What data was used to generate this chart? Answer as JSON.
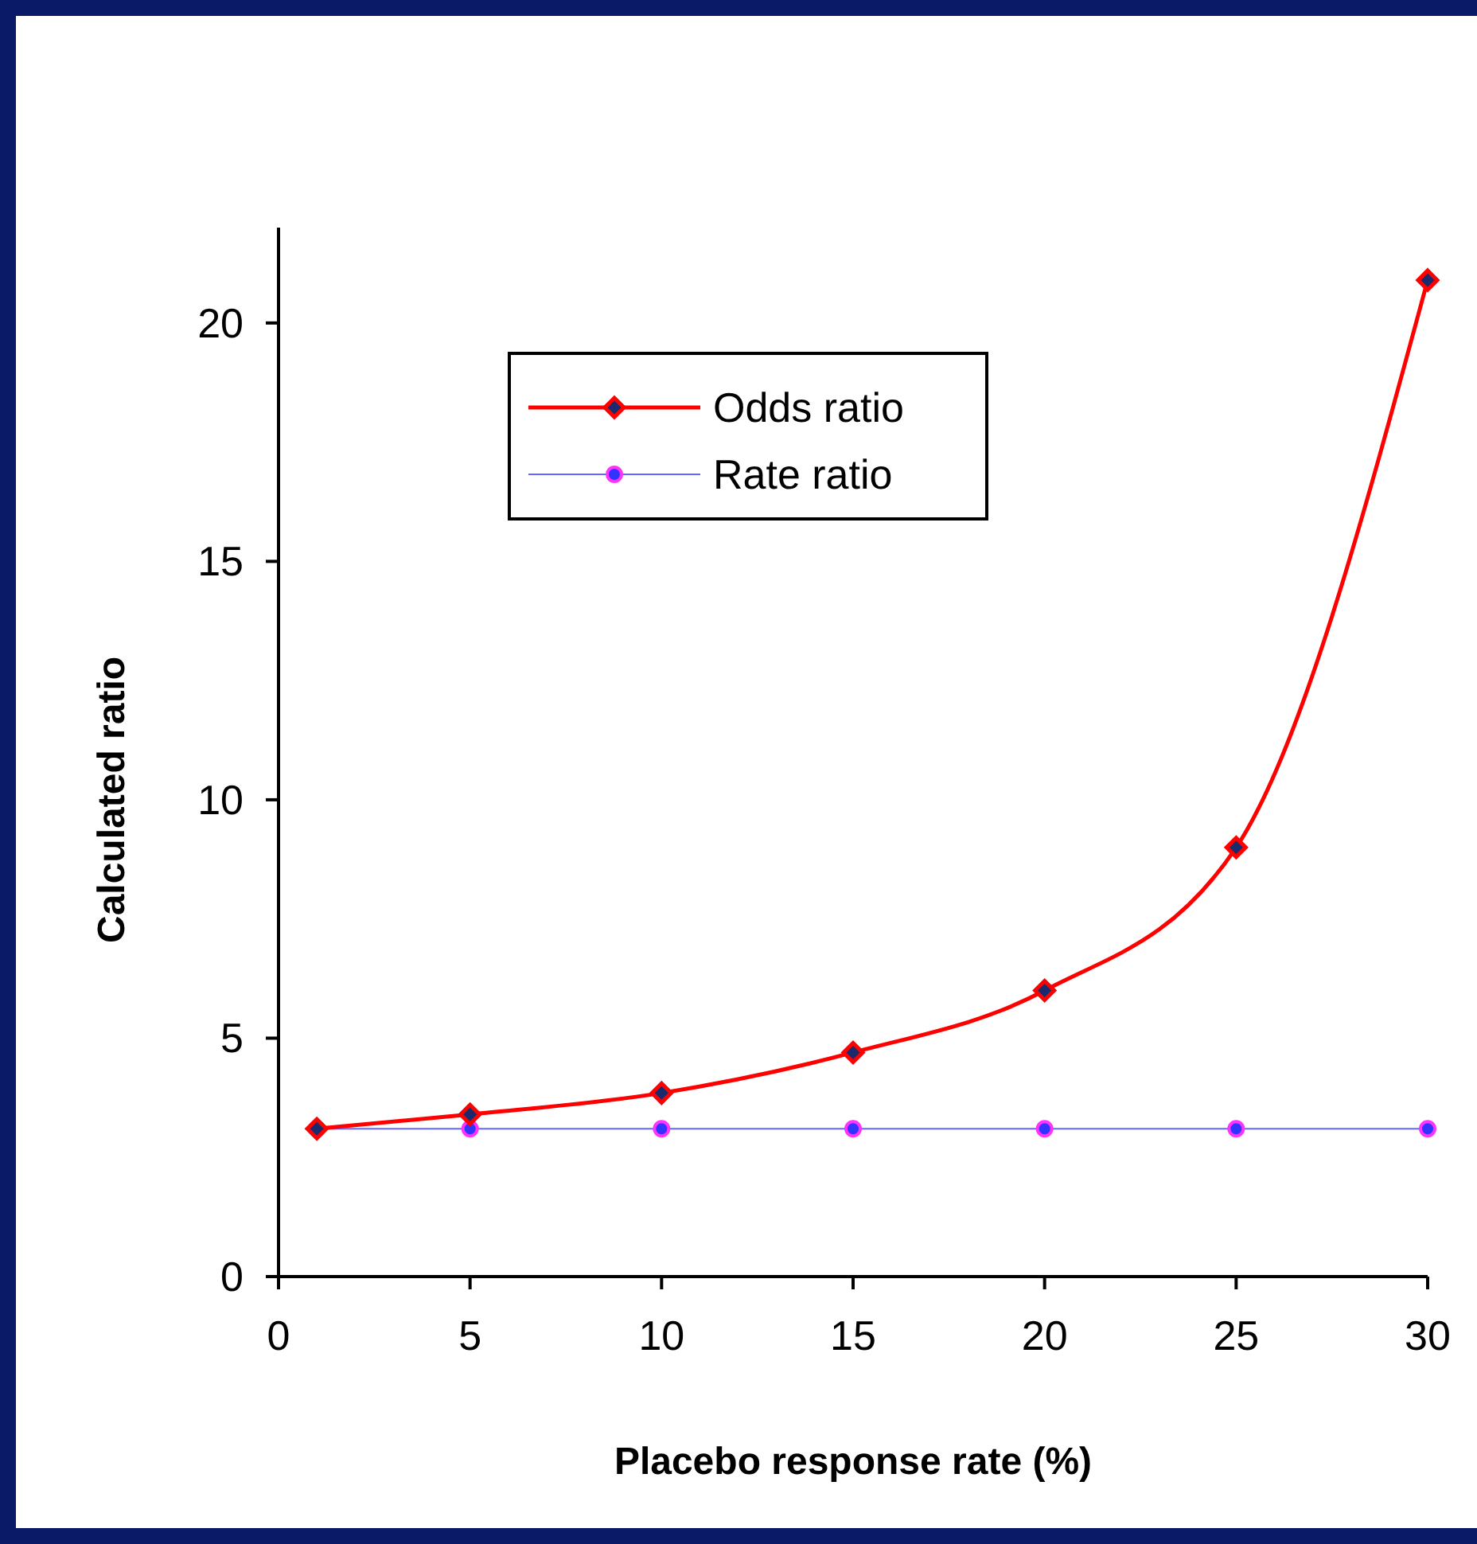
{
  "chart_data": {
    "type": "line",
    "xlabel": "Placebo response rate (%)",
    "ylabel": "Calculated ratio",
    "xlim": [
      0,
      30
    ],
    "xticks": [
      0,
      5,
      10,
      15,
      20,
      25,
      30
    ],
    "ylim": [
      0,
      22
    ],
    "yticks": [
      0,
      5,
      10,
      15,
      20
    ],
    "grid": false,
    "legend": "top left",
    "series": [
      {
        "name": "Odds ratio",
        "color": "#ff0000",
        "marker": "diamond",
        "line_style": "solid",
        "x": [
          1,
          5,
          10,
          15,
          20,
          25,
          30
        ],
        "values": [
          3.1,
          3.4,
          3.85,
          4.7,
          6.0,
          9.0,
          20.9
        ]
      },
      {
        "name": "Rate ratio",
        "color": "#6666ff",
        "marker": "circle",
        "line_style": "solid",
        "x": [
          1,
          5,
          10,
          15,
          20,
          25,
          30
        ],
        "values": [
          3.1,
          3.1,
          3.1,
          3.1,
          3.1,
          3.1,
          3.1
        ]
      }
    ]
  }
}
